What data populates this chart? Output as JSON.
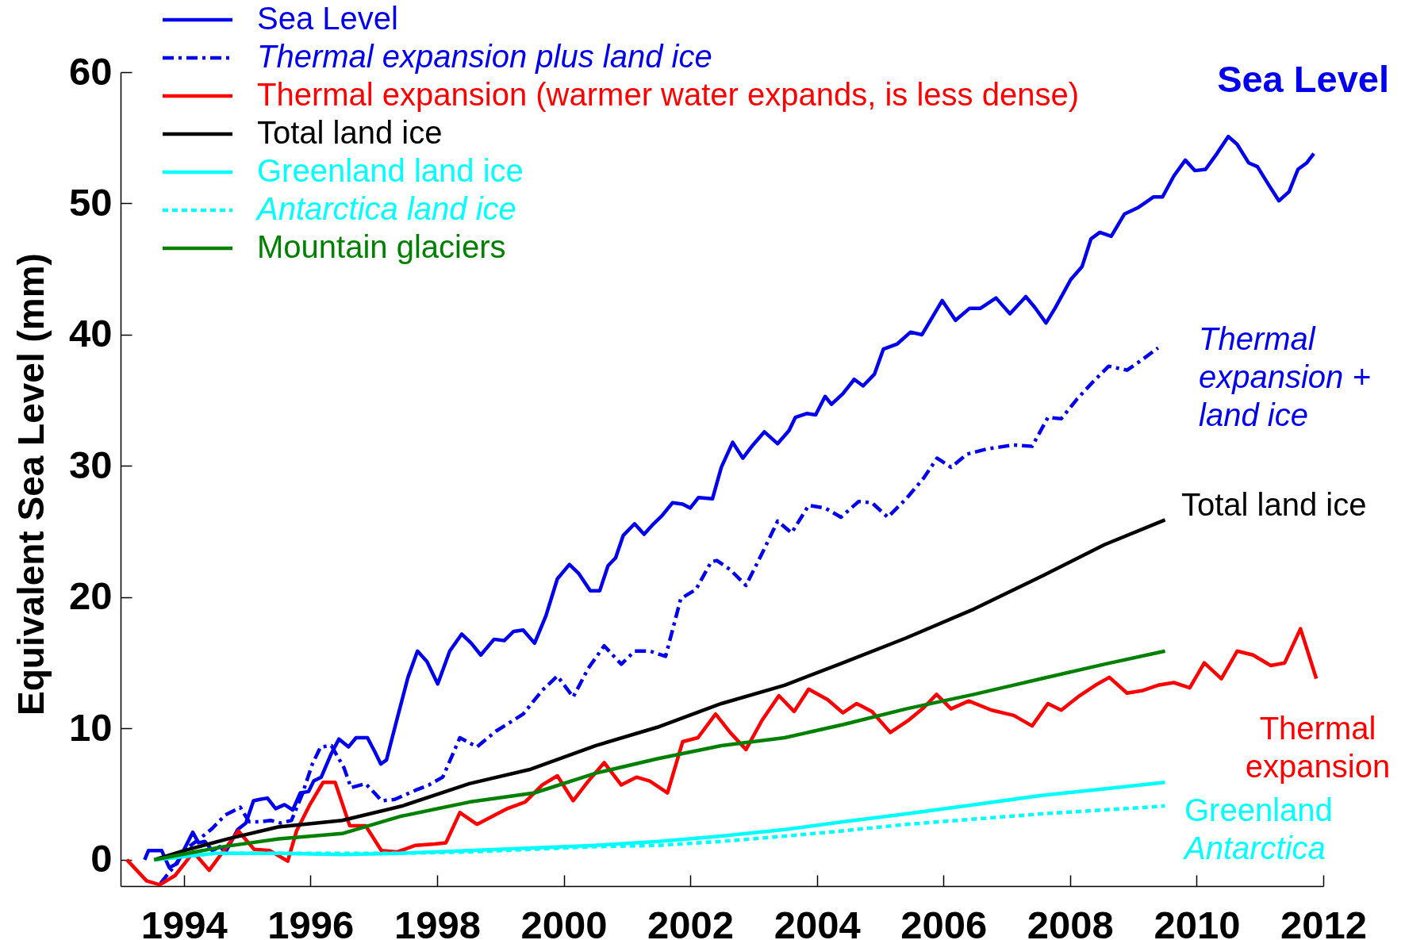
{
  "chart_data": {
    "type": "line",
    "title": "Sea Level",
    "ylabel": "Equivalent Sea Level (mm)",
    "xlim": [
      1993,
      2012
    ],
    "xticks": [
      1994,
      1996,
      1998,
      2000,
      2002,
      2004,
      2006,
      2008,
      2010,
      2012
    ],
    "ylim": [
      -2,
      60
    ],
    "yticks": [
      0,
      10,
      20,
      30,
      40,
      50,
      60
    ],
    "grid": false,
    "legend": "top left",
    "series": [
      {
        "name": "Sea Level",
        "color": "#0000ee",
        "line_style": "solid",
        "x": [
          1993.38,
          1993.44,
          1993.65,
          1993.77,
          1993.89,
          1994.14,
          1994.23,
          1994.33,
          1994.45,
          1994.57,
          1994.66,
          1994.85,
          1994.98,
          1995.1,
          1995.2,
          1995.32,
          1995.45,
          1995.59,
          1995.72,
          1995.84,
          1995.97,
          1996.05,
          1996.17,
          1996.32,
          1996.45,
          1996.6,
          1996.72,
          1996.9,
          1997.02,
          1997.11,
          1997.2,
          1997.35,
          1997.54,
          1997.69,
          1997.84,
          1998.01,
          1998.2,
          1998.39,
          1998.54,
          1998.69,
          1998.9,
          1999.06,
          1999.21,
          1999.36,
          1999.54,
          1999.72,
          1999.9,
          2000.09,
          2000.24,
          2000.42,
          2000.57,
          2000.7,
          2000.82,
          2000.94,
          2001.12,
          2001.27,
          2001.42,
          2001.55,
          2001.72,
          2001.88,
          2002.0,
          2002.13,
          2002.35,
          2002.49,
          2002.67,
          2002.83,
          2002.99,
          2003.17,
          2003.38,
          2003.56,
          2003.66,
          2003.84,
          2003.98,
          2004.13,
          2004.23,
          2004.41,
          2004.59,
          2004.73,
          2004.91,
          2005.05,
          2005.27,
          2005.48,
          2005.66,
          2005.77,
          2005.98,
          2006.19,
          2006.41,
          2006.58,
          2006.83,
          2007.05,
          2007.3,
          2007.44,
          2007.62,
          2007.76,
          2008.01,
          2008.19,
          2008.33,
          2008.47,
          2008.65,
          2008.86,
          2009.08,
          2009.32,
          2009.46,
          2009.64,
          2009.82,
          2009.97,
          2010.14,
          2010.32,
          2010.5,
          2010.64,
          2010.82,
          2010.96,
          2011.14,
          2011.3,
          2011.46,
          2011.6,
          2011.74,
          2011.85
        ],
        "values": [
          0.0,
          0.7,
          0.7,
          -0.6,
          -0.3,
          2.1,
          1.3,
          1.4,
          0.7,
          1.0,
          0.6,
          2.3,
          2.8,
          4.5,
          4.6,
          4.7,
          3.9,
          4.2,
          3.8,
          5.1,
          5.2,
          6.0,
          6.3,
          8.0,
          9.2,
          8.6,
          9.3,
          9.3,
          8.2,
          7.3,
          7.6,
          10.4,
          13.9,
          15.9,
          15.1,
          13.4,
          15.9,
          17.2,
          16.5,
          15.6,
          16.8,
          16.7,
          17.4,
          17.5,
          16.5,
          18.6,
          21.4,
          22.5,
          21.8,
          20.5,
          20.5,
          22.4,
          23.0,
          24.7,
          25.6,
          24.8,
          25.6,
          26.2,
          27.2,
          27.1,
          26.8,
          27.6,
          27.5,
          29.9,
          31.8,
          30.6,
          31.6,
          32.6,
          31.7,
          32.7,
          33.7,
          34.0,
          33.9,
          35.3,
          34.7,
          35.5,
          36.6,
          36.1,
          37.0,
          38.9,
          39.3,
          40.2,
          40.0,
          40.9,
          42.6,
          41.1,
          42.0,
          42.0,
          42.8,
          41.6,
          42.9,
          42.1,
          40.9,
          42.0,
          44.2,
          45.2,
          47.3,
          47.8,
          47.5,
          49.2,
          49.7,
          50.5,
          50.5,
          52.1,
          53.3,
          52.5,
          52.6,
          53.8,
          55.1,
          54.5,
          53.1,
          52.8,
          51.4,
          50.2,
          50.9,
          52.6,
          53.1,
          53.8
        ]
      },
      {
        "name": "Thermal expansion plus land ice",
        "color": "#0000ee",
        "line_style": "dashed",
        "x": [
          1993.63,
          1993.86,
          1994.05,
          1994.25,
          1994.45,
          1994.65,
          1994.89,
          1995.03,
          1995.2,
          1995.37,
          1995.53,
          1995.7,
          1995.87,
          1996.03,
          1996.16,
          1996.33,
          1996.53,
          1996.64,
          1996.87,
          1997.03,
          1997.12,
          1997.33,
          1997.66,
          1997.87,
          1998.09,
          1998.36,
          1998.63,
          1998.93,
          1999.36,
          1999.66,
          1999.9,
          2000.15,
          2000.39,
          2000.64,
          2000.91,
          2001.12,
          2001.36,
          2001.61,
          2001.85,
          2002.09,
          2002.33,
          2002.42,
          2002.63,
          2002.88,
          2003.13,
          2003.38,
          2003.6,
          2003.87,
          2004.13,
          2004.38,
          2004.66,
          2004.87,
          2005.12,
          2005.41,
          2005.69,
          2005.9,
          2006.12,
          2006.37,
          2006.69,
          2007.11,
          2007.4,
          2007.65,
          2007.86,
          2008.11,
          2008.36,
          2008.61,
          2008.9,
          2009.11,
          2009.39
        ],
        "values": [
          -1.8,
          -0.4,
          0.9,
          1.6,
          2.4,
          3.4,
          4.0,
          2.9,
          2.9,
          3.0,
          2.8,
          3.0,
          5.0,
          7.3,
          8.6,
          8.7,
          7.0,
          5.5,
          5.8,
          5.0,
          4.5,
          4.6,
          5.3,
          5.7,
          6.3,
          9.3,
          8.6,
          9.8,
          11.1,
          12.9,
          14.0,
          12.4,
          14.6,
          16.3,
          14.9,
          15.9,
          15.9,
          15.5,
          19.9,
          20.6,
          22.7,
          22.8,
          22.1,
          20.9,
          23.3,
          25.8,
          24.9,
          27.0,
          26.8,
          26.1,
          27.3,
          27.2,
          26.1,
          27.5,
          29.1,
          30.6,
          29.9,
          30.9,
          31.3,
          31.6,
          31.5,
          33.7,
          33.6,
          35.1,
          36.4,
          37.6,
          37.3,
          38.0,
          39.0
        ]
      },
      {
        "name": "Thermal expansion (warmer water expands, is less dense)",
        "color": "#ff0000",
        "line_style": "solid",
        "x": [
          1993.1,
          1993.41,
          1993.62,
          1993.86,
          1994.04,
          1994.15,
          1994.4,
          1994.86,
          1995.11,
          1995.36,
          1995.64,
          1995.78,
          1995.99,
          1996.2,
          1996.39,
          1996.62,
          1996.87,
          1997.12,
          1997.37,
          1997.66,
          1997.96,
          1998.14,
          1998.36,
          1998.63,
          1999.11,
          1999.39,
          1999.66,
          1999.9,
          2000.15,
          2000.39,
          2000.64,
          2000.91,
          2001.15,
          2001.36,
          2001.64,
          2001.88,
          2002.12,
          2002.4,
          2002.63,
          2002.88,
          2003.13,
          2003.4,
          2003.64,
          2003.87,
          2004.17,
          2004.41,
          2004.63,
          2004.87,
          2005.16,
          2005.44,
          2005.69,
          2005.89,
          2006.12,
          2006.4,
          2006.76,
          2007.11,
          2007.4,
          2007.65,
          2007.86,
          2008.15,
          2008.4,
          2008.62,
          2008.9,
          2009.15,
          2009.39,
          2009.64,
          2009.89,
          2010.12,
          2010.39,
          2010.64,
          2010.89,
          2011.17,
          2011.39,
          2011.64,
          2011.89
        ],
        "values": [
          0.0,
          -1.6,
          -1.9,
          -1.2,
          -0.1,
          0.6,
          -0.8,
          2.2,
          0.8,
          0.7,
          -0.1,
          2.2,
          4.2,
          5.9,
          5.9,
          2.6,
          2.6,
          0.7,
          0.6,
          1.1,
          1.2,
          1.3,
          3.6,
          2.7,
          3.9,
          4.4,
          5.7,
          6.4,
          4.5,
          6.0,
          7.4,
          5.7,
          6.3,
          6.0,
          5.1,
          9.0,
          9.3,
          11.1,
          9.7,
          8.4,
          10.6,
          12.5,
          11.3,
          13.0,
          12.2,
          11.2,
          11.9,
          11.3,
          9.7,
          10.6,
          11.6,
          12.6,
          11.5,
          12.1,
          11.4,
          11.0,
          10.2,
          11.9,
          11.4,
          12.5,
          13.3,
          13.9,
          12.7,
          12.9,
          13.3,
          13.5,
          13.1,
          15.0,
          13.8,
          15.9,
          15.6,
          14.8,
          15.0,
          17.6,
          13.8
        ]
      },
      {
        "name": "Total land ice",
        "color": "#000000",
        "line_style": "solid",
        "x": [
          1993.53,
          1994.0,
          1994.7,
          1995.49,
          1996.5,
          1997.45,
          1998.51,
          1999.48,
          2000.51,
          2001.48,
          2002.49,
          2003.49,
          2004.41,
          2005.41,
          2006.48,
          2007.55,
          2008.54,
          2009.5
        ],
        "values": [
          0.0,
          0.7,
          1.6,
          2.5,
          3.0,
          4.1,
          5.8,
          6.9,
          8.7,
          10.1,
          11.9,
          13.3,
          15.0,
          16.9,
          19.1,
          21.6,
          24.0,
          25.9
        ]
      },
      {
        "name": "Greenland land ice",
        "color": "#00ffff",
        "line_style": "solid",
        "x": [
          1993.53,
          1994.5,
          1995.5,
          1996.5,
          1997.41,
          1998.5,
          1999.5,
          2000.5,
          2001.5,
          2002.49,
          2003.49,
          2004.41,
          2005.41,
          2006.48,
          2007.55,
          2008.54,
          2009.5
        ],
        "values": [
          0.0,
          0.5,
          0.5,
          0.4,
          0.5,
          0.7,
          0.9,
          1.1,
          1.4,
          1.8,
          2.3,
          2.9,
          3.5,
          4.2,
          4.9,
          5.4,
          5.9
        ]
      },
      {
        "name": "Antarctica land ice",
        "color": "#00ffff",
        "line_style": "dotted",
        "x": [
          1993.53,
          1994.5,
          1995.5,
          1996.5,
          1997.41,
          1998.5,
          1999.5,
          2000.5,
          2001.5,
          2002.49,
          2003.49,
          2004.41,
          2005.41,
          2006.48,
          2007.55,
          2008.54,
          2009.5
        ],
        "values": [
          0.0,
          0.5,
          0.5,
          0.5,
          0.5,
          0.6,
          0.8,
          1.0,
          1.1,
          1.4,
          1.8,
          2.2,
          2.7,
          3.1,
          3.5,
          3.8,
          4.1
        ]
      },
      {
        "name": "Mountain glaciers",
        "color": "#008000",
        "line_style": "solid",
        "x": [
          1993.53,
          1994.62,
          1995.5,
          1996.5,
          1997.41,
          1998.51,
          1999.54,
          2000.51,
          2001.48,
          2002.49,
          2003.49,
          2004.41,
          2005.41,
          2006.48,
          2007.55,
          2008.54,
          2009.5
        ],
        "values": [
          0.0,
          1.0,
          1.6,
          2.0,
          3.3,
          4.4,
          5.1,
          6.6,
          7.7,
          8.7,
          9.3,
          10.3,
          11.5,
          12.6,
          13.8,
          14.9,
          15.9
        ]
      }
    ],
    "annotations": [
      "Thermal\nexpansion +\nland ice",
      "Total land ice",
      "Thermal\nexpansion",
      "Greenland",
      "Antarctica"
    ]
  }
}
